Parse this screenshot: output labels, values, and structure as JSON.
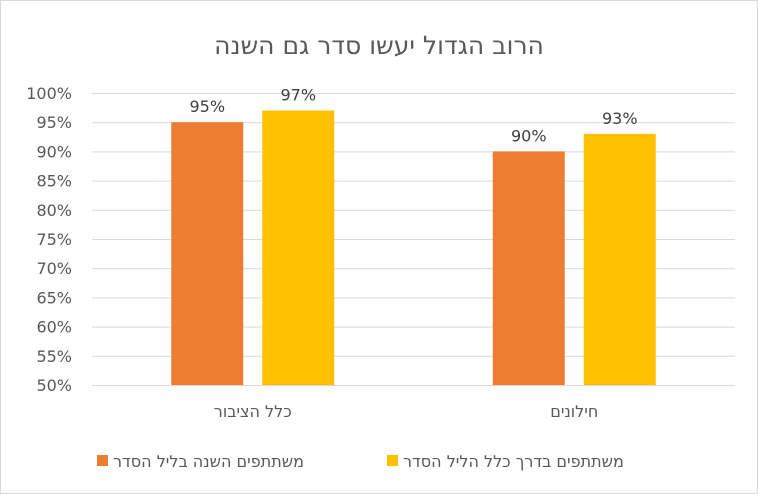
{
  "chart_data": {
    "type": "bar",
    "title": "הרוב הגדול יעשו סדר גם השנה",
    "categories": [
      "כלל הציבור",
      "חילונים"
    ],
    "series": [
      {
        "name": "משתתפים השנה בליל הסדר",
        "values": [
          95,
          90
        ],
        "color": "#ED7D31",
        "labels": [
          "95%",
          "90%"
        ]
      },
      {
        "name": "משתתפים בדרך כלל הליל הסדר",
        "values": [
          97,
          93
        ],
        "color": "#FFC000",
        "labels": [
          "97%",
          "93%"
        ]
      }
    ],
    "ylim": [
      50,
      100
    ],
    "yticks": [
      "50%",
      "55%",
      "60%",
      "65%",
      "70%",
      "75%",
      "80%",
      "85%",
      "90%",
      "95%",
      "100%"
    ],
    "ytick_values": [
      50,
      55,
      60,
      65,
      70,
      75,
      80,
      85,
      90,
      95,
      100
    ],
    "grid": true,
    "legend": "bottom",
    "xlabel": "",
    "ylabel": ""
  }
}
